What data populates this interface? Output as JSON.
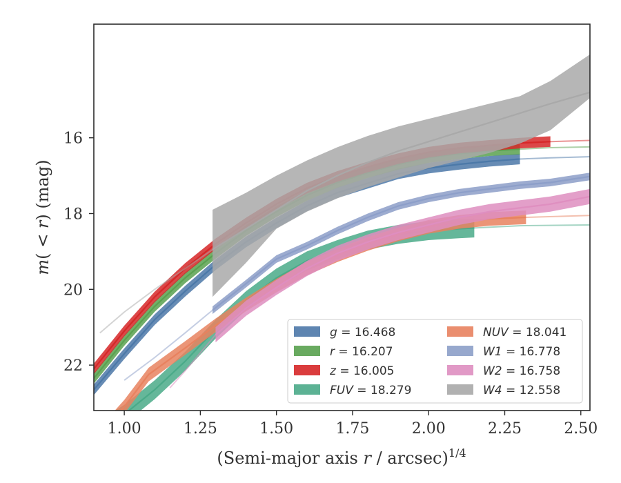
{
  "chart_data": {
    "type": "line",
    "title": "",
    "xlabel_main": "(Semi-major axis ",
    "xlabel_r": "r",
    "xlabel_rest": " / arcsec)",
    "xlabel_sup": "1/4",
    "ylabel_m": "m",
    "ylabel_mid": "(",
    "ylabel_lt": " < ",
    "ylabel_r": "r",
    "ylabel_end": ") (mag)",
    "xlim": [
      0.9,
      2.53
    ],
    "ylim": [
      23.2,
      13.0
    ],
    "y_inverted": true,
    "grid": false,
    "legend_position": "lower-right",
    "x_ticks": [
      1.0,
      1.25,
      1.5,
      1.75,
      2.0,
      2.25,
      2.5
    ],
    "x_tick_labels": [
      "1.00",
      "1.25",
      "1.50",
      "1.75",
      "2.00",
      "2.25",
      "2.50"
    ],
    "y_ticks": [
      16,
      18,
      20,
      22
    ],
    "y_tick_labels": [
      "16",
      "18",
      "20",
      "22"
    ],
    "series": [
      {
        "name": "g",
        "label_value": "= 16.468",
        "color": "#4c78a8",
        "x": [
          0.9,
          1.0,
          1.1,
          1.2,
          1.3,
          1.4,
          1.5,
          1.6,
          1.7,
          1.8,
          1.9,
          2.0,
          2.1,
          2.2,
          2.3,
          2.4,
          2.53
        ],
        "y": [
          22.65,
          21.7,
          20.8,
          20.05,
          19.35,
          18.75,
          18.25,
          17.8,
          17.45,
          17.2,
          16.95,
          16.8,
          16.7,
          16.62,
          16.56,
          16.53,
          16.5
        ],
        "band_width": 0.14,
        "fade_from": 2.3
      },
      {
        "name": "r",
        "label_value": "= 16.207",
        "color": "#59a14f",
        "x": [
          0.9,
          1.0,
          1.1,
          1.2,
          1.3,
          1.4,
          1.5,
          1.6,
          1.7,
          1.8,
          1.9,
          2.0,
          2.1,
          2.2,
          2.3,
          2.4,
          2.53
        ],
        "y": [
          22.35,
          21.35,
          20.45,
          19.7,
          19.05,
          18.45,
          17.95,
          17.52,
          17.18,
          16.92,
          16.7,
          16.52,
          16.42,
          16.34,
          16.3,
          16.26,
          16.24
        ],
        "band_width": 0.14,
        "fade_from": 2.3
      },
      {
        "name": "z",
        "label_value": "= 16.005",
        "color": "#d62728",
        "x": [
          0.9,
          1.0,
          1.1,
          1.2,
          1.3,
          1.4,
          1.5,
          1.6,
          1.7,
          1.8,
          1.9,
          2.0,
          2.1,
          2.2,
          2.3,
          2.4,
          2.53
        ],
        "y": [
          22.1,
          21.1,
          20.2,
          19.45,
          18.8,
          18.25,
          17.75,
          17.33,
          17.02,
          16.77,
          16.55,
          16.38,
          16.27,
          16.2,
          16.14,
          16.1,
          16.07
        ],
        "band_width": 0.14,
        "fade_from": 2.48
      },
      {
        "name": "FUV",
        "label_value": "= 18.279",
        "color": "#4aaa88",
        "x": [
          0.9,
          1.0,
          1.1,
          1.2,
          1.3,
          1.4,
          1.5,
          1.6,
          1.7,
          1.8,
          1.9,
          2.0,
          2.1,
          2.15,
          2.3,
          2.53
        ],
        "y": [
          23.8,
          23.3,
          22.65,
          21.9,
          21.05,
          20.3,
          19.7,
          19.25,
          18.95,
          18.7,
          18.55,
          18.45,
          18.4,
          18.38,
          18.32,
          18.3
        ],
        "band_width": 0.25,
        "fade_from": 2.15
      },
      {
        "name": "NUV",
        "label_value": "= 18.041",
        "color": "#e8825f",
        "x": [
          0.9,
          1.0,
          1.08,
          1.2,
          1.3,
          1.4,
          1.5,
          1.6,
          1.7,
          1.8,
          1.9,
          2.0,
          2.1,
          2.2,
          2.32,
          2.53
        ],
        "y": [
          24.0,
          23.1,
          22.25,
          21.55,
          20.95,
          20.4,
          19.9,
          19.45,
          19.1,
          18.8,
          18.55,
          18.35,
          18.22,
          18.14,
          18.1,
          18.05
        ],
        "band_width": 0.18,
        "fade_from": 2.32
      },
      {
        "name": "W1",
        "label_value": "= 16.778",
        "color": "#8c9ec8",
        "x": [
          1.0,
          1.1,
          1.2,
          1.29,
          1.4,
          1.5,
          1.6,
          1.7,
          1.8,
          1.9,
          2.0,
          2.1,
          2.2,
          2.3,
          2.4,
          2.53
        ],
        "y": [
          22.4,
          21.8,
          21.15,
          20.55,
          19.85,
          19.2,
          18.85,
          18.45,
          18.1,
          17.8,
          17.6,
          17.45,
          17.35,
          17.25,
          17.18,
          17.02
        ],
        "band_width": 0.1,
        "fade_from": 2.53,
        "faint_until": 1.29
      },
      {
        "name": "W2",
        "label_value": "= 16.758",
        "color": "#de8ec0",
        "x": [
          1.15,
          1.2,
          1.3,
          1.4,
          1.5,
          1.6,
          1.7,
          1.8,
          1.9,
          2.0,
          2.1,
          2.2,
          2.3,
          2.4,
          2.53
        ],
        "y": [
          22.6,
          22.15,
          21.2,
          20.5,
          19.95,
          19.45,
          19.05,
          18.75,
          18.5,
          18.3,
          18.1,
          17.95,
          17.85,
          17.75,
          17.55
        ],
        "band_width": 0.2,
        "fade_from": 2.53,
        "faint_until": 1.29
      },
      {
        "name": "W4",
        "label_value": "= 12.558",
        "color": "#a9a9a9",
        "x": [
          0.92,
          1.0,
          1.1,
          1.2,
          1.29,
          1.4,
          1.5,
          1.6,
          1.7,
          1.8,
          1.9,
          2.0,
          2.1,
          2.2,
          2.3,
          2.4,
          2.53
        ],
        "y": [
          21.15,
          20.6,
          20.0,
          19.45,
          18.95,
          18.4,
          17.9,
          17.4,
          17.0,
          16.65,
          16.35,
          16.1,
          15.85,
          15.6,
          15.35,
          15.1,
          14.8
        ],
        "band_upper": [
          null,
          null,
          null,
          null,
          17.9,
          17.45,
          17.0,
          16.6,
          16.25,
          15.95,
          15.7,
          15.5,
          15.3,
          15.1,
          14.9,
          14.5,
          13.8
        ],
        "band_lower": [
          null,
          null,
          null,
          null,
          20.2,
          19.3,
          18.4,
          17.95,
          17.6,
          17.3,
          17.05,
          16.8,
          16.6,
          16.4,
          16.15,
          15.8,
          14.95
        ],
        "band_from": 1.29,
        "fade_from": 2.53,
        "faint_until": 1.29
      }
    ]
  }
}
